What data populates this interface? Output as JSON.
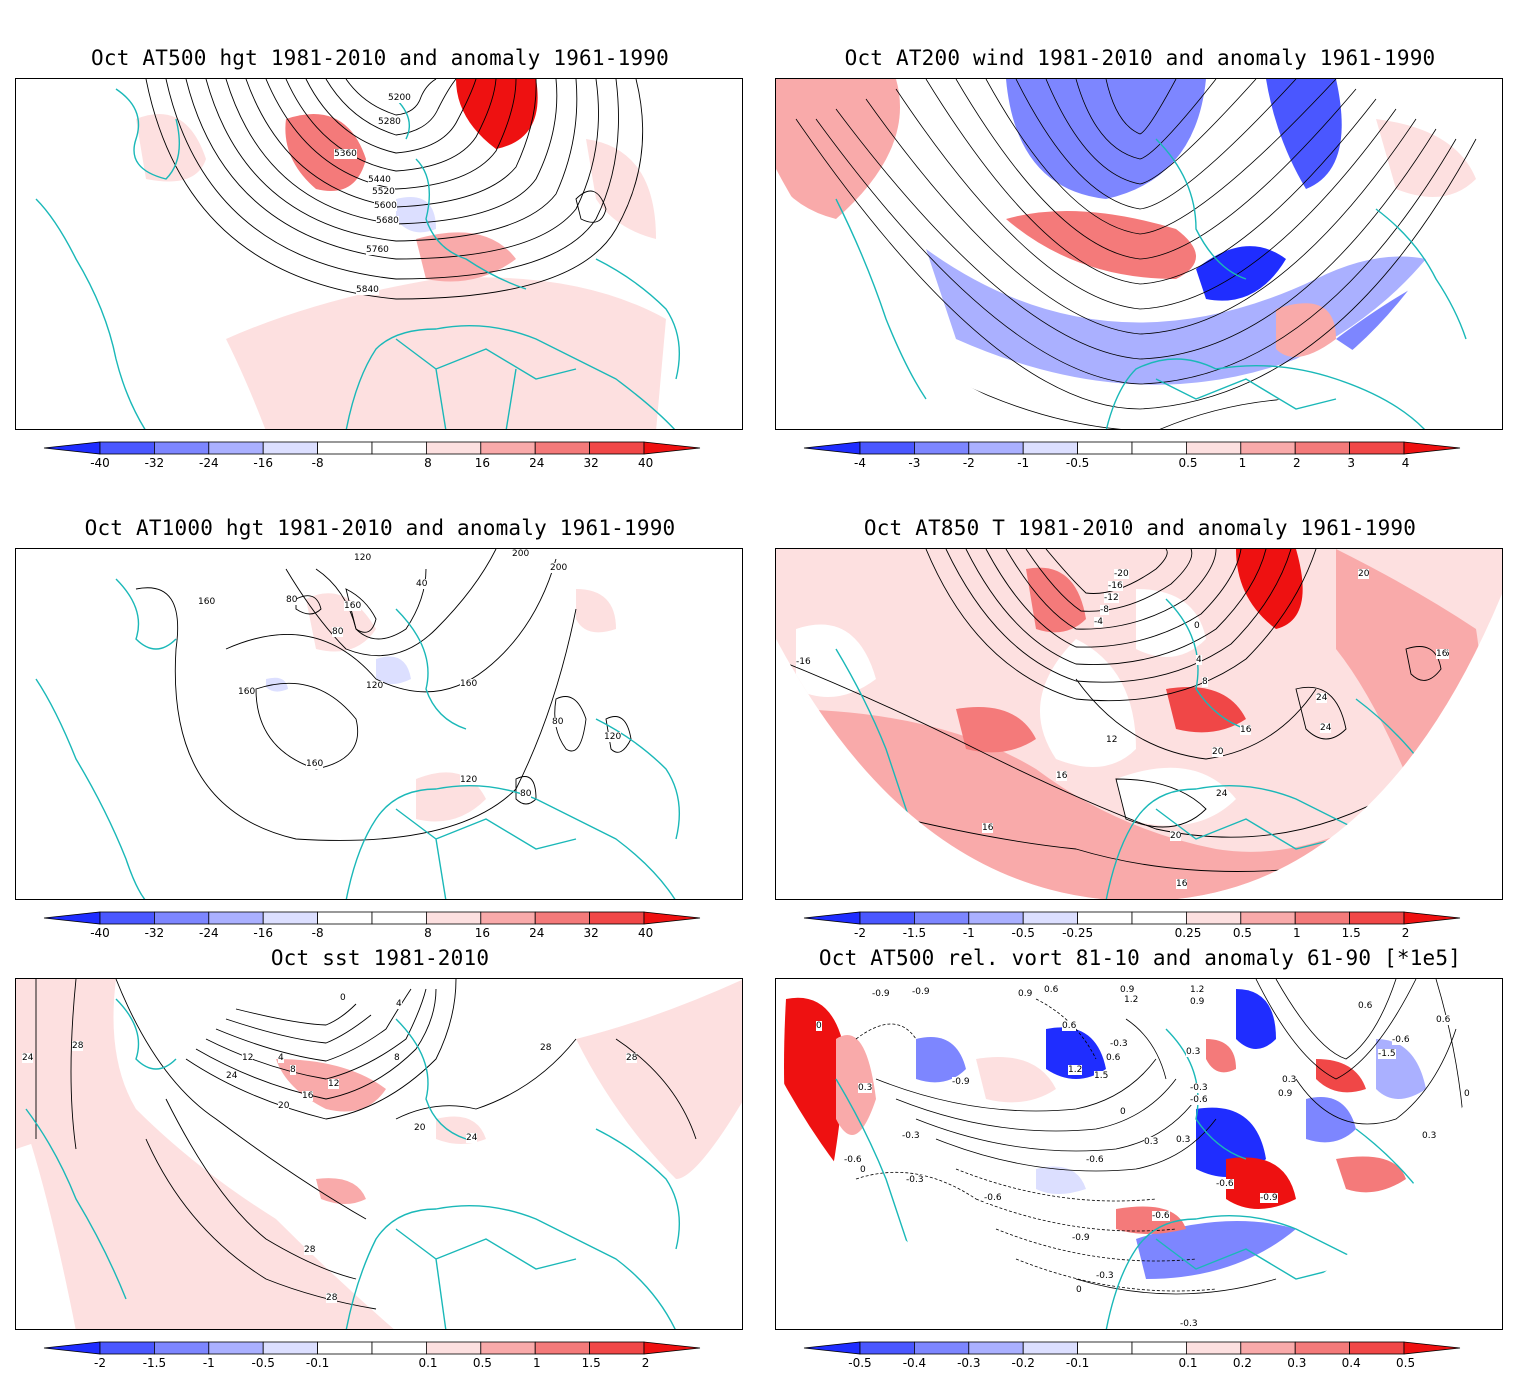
{
  "panels": [
    {
      "id": "p1",
      "title": "Oct AT500 hgt 1981-2010 and anomaly 1961-1990",
      "colorbar": [
        "-40",
        "-32",
        "-24",
        "-16",
        "-8",
        "8",
        "16",
        "24",
        "32",
        "40"
      ],
      "contour_labels": [
        "5200",
        "5280",
        "5360",
        "5440",
        "5520",
        "5600",
        "5680",
        "5760",
        "5840"
      ]
    },
    {
      "id": "p2",
      "title": "Oct AT200 wind 1981-2010 and anomaly 1961-1990",
      "colorbar": [
        "-4",
        "-3",
        "-2",
        "-1",
        "-0.5",
        "0.5",
        "1",
        "2",
        "3",
        "4"
      ],
      "contour_labels": []
    },
    {
      "id": "p3",
      "title": "Oct AT1000 hgt 1981-2010 and anomaly 1961-1990",
      "colorbar": [
        "-40",
        "-32",
        "-24",
        "-16",
        "-8",
        "8",
        "16",
        "24",
        "32",
        "40"
      ],
      "contour_labels": [
        "120",
        "80",
        "160",
        "40",
        "80",
        "120",
        "160",
        "160",
        "200",
        "200",
        "160",
        "80",
        "120",
        "120",
        "80",
        "160"
      ]
    },
    {
      "id": "p4",
      "title": "Oct AT850 T 1981-2010 and anomaly 1961-1990",
      "colorbar": [
        "-2",
        "-1.5",
        "-1",
        "-0.5",
        "-0.25",
        "0.25",
        "0.5",
        "1",
        "1.5",
        "2"
      ],
      "contour_labels": [
        "-20",
        "-16",
        "-12",
        "-8",
        "-4",
        "0",
        "4",
        "8",
        "12",
        "16",
        "16",
        "20",
        "24",
        "24",
        "16",
        "20",
        "24",
        "16",
        "20",
        "16",
        "16",
        "-16"
      ]
    },
    {
      "id": "p5",
      "title": "Oct sst 1981-2010",
      "colorbar": [
        "-2",
        "-1.5",
        "-1",
        "-0.5",
        "-0.1",
        "0.1",
        "0.5",
        "1",
        "1.5",
        "2"
      ],
      "contour_labels": [
        "24",
        "28",
        "24",
        "12",
        "4",
        "8",
        "16",
        "20",
        "0",
        "4",
        "8",
        "12",
        "20",
        "24",
        "28",
        "28",
        "28",
        "28"
      ]
    },
    {
      "id": "p6",
      "title": "Oct AT500 rel. vort 81-10 and anomaly 61-90 [*1e5]",
      "colorbar": [
        "-0.5",
        "-0.4",
        "-0.3",
        "-0.2",
        "-0.1",
        "0.1",
        "0.2",
        "0.3",
        "0.4",
        "0.5"
      ],
      "contour_labels": [
        "-0.9",
        "-0.9",
        "0.9",
        "0.6",
        "0.9",
        "1.2",
        "1.2",
        "0.9",
        "0",
        "0.6",
        "-0.3",
        "0.6",
        "0.3",
        "1.2",
        "1.5",
        "0.3",
        "-0.3",
        "-0.6",
        "-0.9",
        "0",
        "0.3",
        "0.3",
        "-0.3",
        "-0.6",
        "0",
        "-0.6",
        "-0.3",
        "-0.6",
        "0.9",
        "0.3",
        "0.6",
        "0",
        "-0.6",
        "-0.9",
        "-0.6",
        "-0.9",
        "-0.3",
        "0",
        "0.6",
        "-1.5",
        "-0.6",
        "0.3",
        "-0.3"
      ]
    }
  ],
  "colors": {
    "coast": "#1ab8b8",
    "blue_scale": [
      "#1f2dff",
      "#4a57ff",
      "#7d86ff",
      "#aab0ff",
      "#dcdfff"
    ],
    "red_scale": [
      "#fde0e0",
      "#f9aaaa",
      "#f47a7a",
      "#f04747",
      "#ee1111"
    ]
  }
}
